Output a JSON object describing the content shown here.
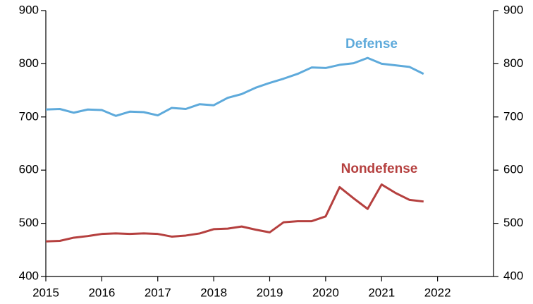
{
  "chart_data": {
    "type": "line",
    "x": [
      2015,
      2015.25,
      2015.5,
      2015.75,
      2016,
      2016.25,
      2016.5,
      2016.75,
      2017,
      2017.25,
      2017.5,
      2017.75,
      2018,
      2018.25,
      2018.5,
      2018.75,
      2019,
      2019.25,
      2019.5,
      2019.75,
      2020,
      2020.25,
      2020.5,
      2020.75,
      2021,
      2021.25,
      2021.5,
      2021.75
    ],
    "series": [
      {
        "name": "Defense",
        "color": "#5eaadb",
        "values": [
          714,
          715,
          708,
          714,
          713,
          702,
          710,
          709,
          703,
          717,
          715,
          724,
          722,
          736,
          743,
          755,
          764,
          772,
          781,
          793,
          792,
          798,
          801,
          811,
          800,
          797,
          794,
          781
        ]
      },
      {
        "name": "Nondefense",
        "color": "#b5403f",
        "values": [
          466,
          467,
          473,
          476,
          480,
          481,
          480,
          481,
          480,
          475,
          477,
          481,
          489,
          490,
          494,
          488,
          483,
          502,
          504,
          504,
          513,
          568,
          547,
          527,
          573,
          557,
          544,
          541
        ]
      }
    ],
    "xlim": [
      2015,
      2023
    ],
    "xticks": [
      2015,
      2016,
      2017,
      2018,
      2019,
      2020,
      2021,
      2022
    ],
    "ylim": [
      400,
      900
    ],
    "yticks": [
      400,
      500,
      600,
      700,
      800,
      900
    ],
    "y2lim": [
      400,
      900
    ],
    "y2ticks": [
      400,
      500,
      600,
      700,
      800,
      900
    ]
  }
}
